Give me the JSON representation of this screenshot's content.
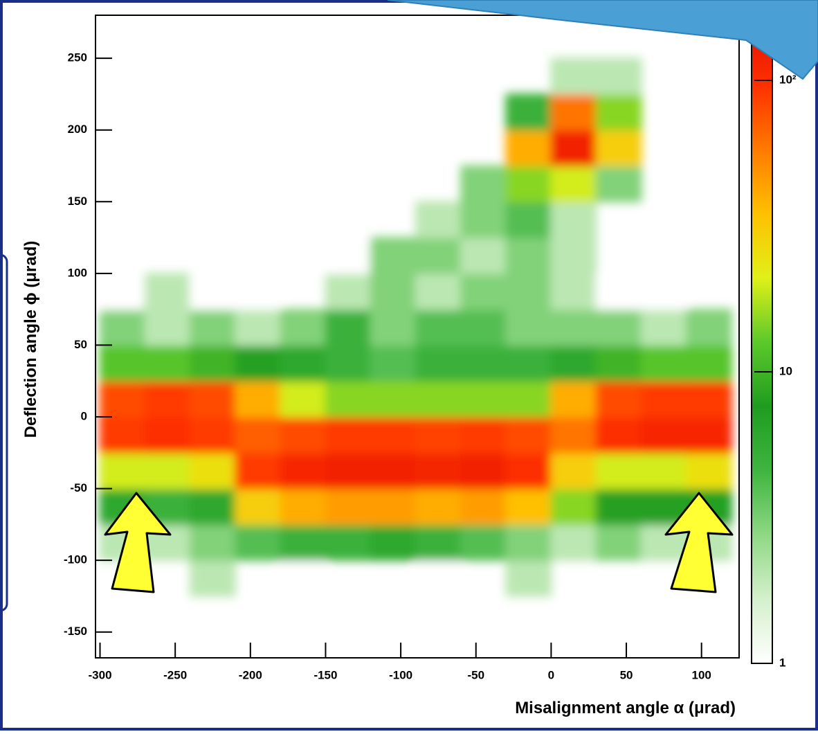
{
  "chart_data": {
    "type": "heatmap",
    "x_label": "Misalignment angle α (μrad)",
    "y_label": "Deflection angle ϕ (μrad)",
    "xlim": [
      -303,
      125
    ],
    "ylim": [
      -168,
      280
    ],
    "xticks": [
      -300,
      -250,
      -200,
      -150,
      -100,
      -50,
      0,
      50,
      100
    ],
    "yticks": [
      -150,
      -100,
      -50,
      0,
      50,
      100,
      150,
      200,
      250
    ],
    "xbins": [
      -300,
      -270,
      -240,
      -210,
      -180,
      -150,
      -120,
      -90,
      -60,
      -30,
      0,
      30,
      60,
      90,
      120
    ],
    "ybins": [
      -150,
      -125,
      -100,
      -75,
      -50,
      -25,
      0,
      25,
      50,
      75,
      100,
      125,
      150,
      175,
      200,
      225,
      250
    ],
    "values": [
      [
        0,
        0,
        0,
        0,
        0,
        0,
        1,
        0,
        0,
        0,
        0,
        0,
        0,
        0
      ],
      [
        0,
        0,
        2,
        0,
        1,
        0,
        0,
        1,
        0,
        2,
        0,
        0,
        0,
        0
      ],
      [
        2,
        2,
        3,
        4,
        5,
        5,
        6,
        5,
        4,
        3,
        2,
        3,
        2,
        2
      ],
      [
        6,
        5,
        6,
        30,
        40,
        45,
        45,
        40,
        45,
        35,
        15,
        8,
        8,
        7
      ],
      [
        20,
        20,
        25,
        90,
        110,
        120,
        120,
        115,
        120,
        100,
        30,
        20,
        20,
        25
      ],
      [
        90,
        100,
        90,
        70,
        80,
        90,
        90,
        85,
        90,
        80,
        60,
        100,
        110,
        110
      ],
      [
        80,
        90,
        80,
        40,
        20,
        15,
        15,
        15,
        15,
        15,
        40,
        80,
        90,
        90
      ],
      [
        12,
        12,
        10,
        8,
        6,
        5,
        4,
        5,
        5,
        5,
        6,
        10,
        12,
        12
      ],
      [
        3,
        2,
        3,
        2,
        3,
        5,
        3,
        4,
        4,
        3,
        3,
        3,
        2,
        3
      ],
      [
        1,
        2,
        1,
        1,
        0,
        2,
        3,
        2,
        3,
        3,
        2,
        1,
        1,
        0
      ],
      [
        0,
        0,
        0,
        0,
        0,
        1,
        3,
        3,
        2,
        3,
        2,
        0,
        0,
        0
      ],
      [
        0,
        0,
        0,
        0,
        1,
        0,
        0,
        2,
        3,
        4,
        2,
        0,
        0,
        0
      ],
      [
        0,
        0,
        0,
        0,
        0,
        0,
        0,
        0,
        3,
        15,
        20,
        3,
        0,
        0
      ],
      [
        0,
        0,
        0,
        0,
        0,
        0,
        0,
        0,
        0,
        40,
        120,
        30,
        0,
        0
      ],
      [
        0,
        0,
        0,
        0,
        0,
        0,
        0,
        0,
        0,
        5,
        60,
        15,
        0,
        0
      ],
      [
        0,
        0,
        0,
        0,
        0,
        0,
        0,
        0,
        0,
        0,
        2,
        2,
        0,
        0
      ]
    ],
    "zlim": [
      1,
      160
    ],
    "zlog": true,
    "zticks": [
      1,
      10,
      {
        "value": 100,
        "label": "10²"
      }
    ],
    "colorscale": [
      "#ffffff",
      "#d4f0cc",
      "#8fd884",
      "#3fb53f",
      "#1f9c1f",
      "#5cc92a",
      "#e0f018",
      "#ffc000",
      "#ff7a00",
      "#ff3000",
      "#e01000"
    ]
  }
}
